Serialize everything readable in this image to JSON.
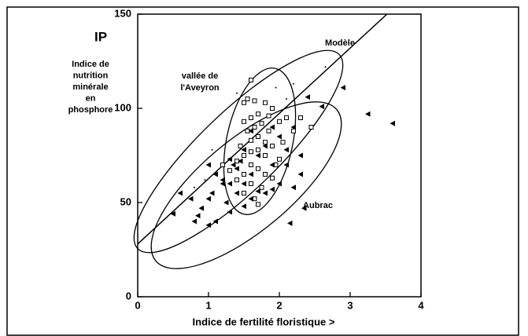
{
  "chart_data": {
    "type": "scatter",
    "title": "IP",
    "ylabel": [
      "Indice de",
      "nutrition",
      "minérale",
      "en",
      "phosphore"
    ],
    "xlabel": "Indice de fertilité floristique  >",
    "xlim": [
      0,
      4
    ],
    "xticks": [
      0,
      1,
      2,
      3,
      4
    ],
    "ylim": [
      0,
      150
    ],
    "yticks": [
      0,
      50,
      100,
      150
    ],
    "annotations": [
      {
        "lines": [
          "Modèle"
        ]
      },
      {
        "lines": [
          "vallée de",
          "l'Aveyron"
        ]
      },
      {
        "lines": [
          "Aubrac"
        ]
      }
    ],
    "model_line": {
      "x": [
        0,
        3.52
      ],
      "y": [
        28,
        150
      ],
      "color": "#000"
    },
    "series": [
      {
        "marker": "square",
        "color": "#000",
        "x": [
          1.6,
          1.55,
          1.5,
          1.65,
          1.8,
          1.9,
          1.7,
          1.6,
          1.5,
          1.75,
          2.0,
          2.1,
          1.65,
          1.55,
          1.85,
          2.2,
          1.7,
          1.6,
          1.8,
          1.9,
          1.7,
          1.6,
          1.5,
          1.8,
          2.0,
          1.4,
          1.6,
          1.7,
          1.3,
          1.5,
          1.8,
          1.9,
          1.4,
          1.6,
          1.75,
          1.5,
          1.65,
          1.7,
          2.3,
          2.45,
          1.85,
          1.2,
          2.05,
          1.45,
          1.95
        ],
        "y": [
          115,
          105,
          103,
          104,
          103,
          100,
          97,
          95,
          93,
          92,
          93,
          95,
          90,
          88,
          88,
          88,
          85,
          83,
          82,
          80,
          78,
          77,
          75,
          75,
          73,
          72,
          70,
          68,
          67,
          65,
          65,
          63,
          62,
          60,
          58,
          55,
          52,
          49,
          95,
          90,
          96,
          70,
          82,
          80,
          70
        ]
      },
      {
        "marker": "triangle",
        "color": "#000",
        "x": [
          2.9,
          3.25,
          3.6,
          2.6,
          2.4,
          2.2,
          2.0,
          2.1,
          2.3,
          1.9,
          2.1,
          2.3,
          2.0,
          1.9,
          2.2,
          1.8,
          1.7,
          1.6,
          1.5,
          2.15,
          2.35,
          1.3,
          1.2,
          1.1,
          1.0,
          1.05,
          1.0,
          0.9,
          0.85,
          0.8,
          0.5,
          0.75,
          0.6,
          1.1,
          1.0,
          1.3,
          1.25,
          1.4,
          1.5,
          1.6,
          1.35,
          1.45,
          1.7,
          1.3,
          1.8,
          1.5,
          1.4,
          1.9,
          1.6,
          1.2
        ],
        "y": [
          111,
          97,
          92,
          101,
          106,
          90,
          85,
          78,
          75,
          70,
          70,
          65,
          60,
          57,
          58,
          55,
          56,
          52,
          48,
          39,
          47,
          60,
          62,
          65,
          70,
          55,
          52,
          47,
          43,
          40,
          44,
          52,
          55,
          40,
          38,
          45,
          50,
          55,
          60,
          65,
          70,
          72,
          75,
          73,
          80,
          78,
          68,
          90,
          88,
          60
        ]
      },
      {
        "marker": "dot",
        "color": "#000",
        "x": [
          1.4,
          1.95,
          2.2,
          2.65,
          1.05,
          0.8,
          0.95,
          2.1
        ],
        "y": [
          108,
          111,
          113,
          122,
          78,
          58,
          62,
          105
        ]
      }
    ]
  }
}
